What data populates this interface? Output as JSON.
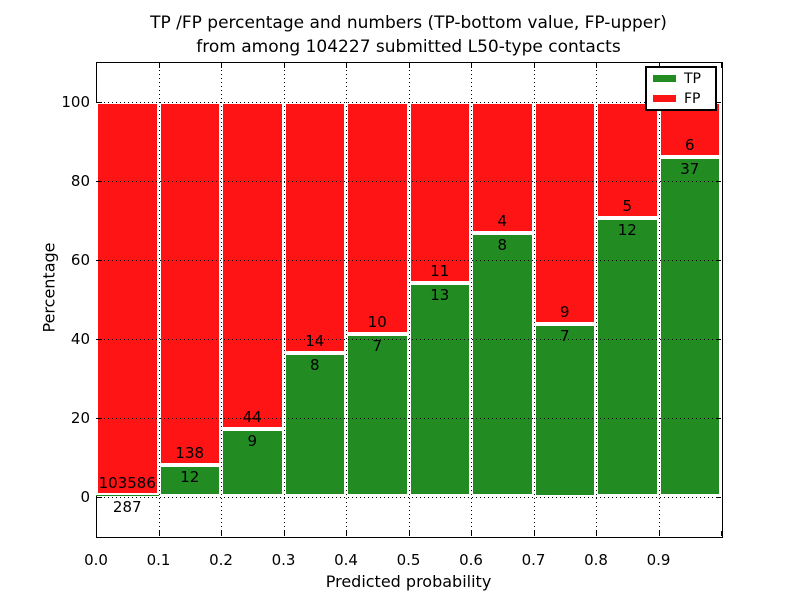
{
  "title": {
    "line1": "TP /FP percentage and numbers (TP-bottom value, FP-upper)",
    "line2": "from among 104227 submitted L50-type contacts"
  },
  "axes": {
    "xlabel": "Predicted probability",
    "ylabel": "Percentage",
    "yticks": [
      0,
      20,
      40,
      60,
      80,
      100
    ],
    "xtick_labels": [
      "0.0",
      "0.1",
      "0.2",
      "0.3",
      "0.4",
      "0.5",
      "0.6",
      "0.7",
      "0.8",
      "0.9"
    ],
    "xtick_values": [
      0.0,
      0.1,
      0.2,
      0.3,
      0.4,
      0.5,
      0.6,
      0.7,
      0.8,
      0.9
    ],
    "xgrid_values": [
      0.1,
      0.2,
      0.3,
      0.4,
      0.5,
      0.6,
      0.7,
      0.8,
      0.9
    ],
    "ylim": [
      -10,
      110
    ],
    "xlim": [
      0,
      1
    ],
    "grid_style": "dotted"
  },
  "legend": {
    "items": [
      {
        "label": "TP",
        "color": "#228b22"
      },
      {
        "label": "FP",
        "color": "#fe1414"
      }
    ]
  },
  "chart_data": {
    "type": "bar",
    "stacked": true,
    "normalized_to_percent": 100,
    "title": "TP /FP percentage and numbers (TP-bottom value, FP-upper) from among 104227 submitted L50-type contacts",
    "xlabel": "Predicted probability",
    "ylabel": "Percentage",
    "xlim": [
      0,
      1
    ],
    "ylim": [
      -10,
      110
    ],
    "legend_position": "upper right",
    "grid": true,
    "bin_edges": [
      0.0,
      0.1,
      0.2,
      0.3,
      0.4,
      0.5,
      0.6,
      0.7,
      0.8,
      0.9,
      1.0
    ],
    "categories": [
      "0.0-0.1",
      "0.1-0.2",
      "0.2-0.3",
      "0.3-0.4",
      "0.4-0.5",
      "0.5-0.6",
      "0.6-0.7",
      "0.7-0.8",
      "0.8-0.9",
      "0.9-1.0"
    ],
    "series": [
      {
        "name": "TP",
        "color": "#228b22",
        "counts": [
          287,
          12,
          9,
          8,
          7,
          13,
          8,
          7,
          12,
          37
        ]
      },
      {
        "name": "FP",
        "color": "#fe1414",
        "counts": [
          103586,
          138,
          44,
          14,
          10,
          11,
          4,
          9,
          5,
          6
        ]
      }
    ],
    "tp_percent": [
      0.3,
      8.0,
      17.0,
      36.4,
      41.2,
      54.2,
      66.7,
      43.8,
      70.6,
      86.0
    ],
    "total_contacts": 104227
  }
}
